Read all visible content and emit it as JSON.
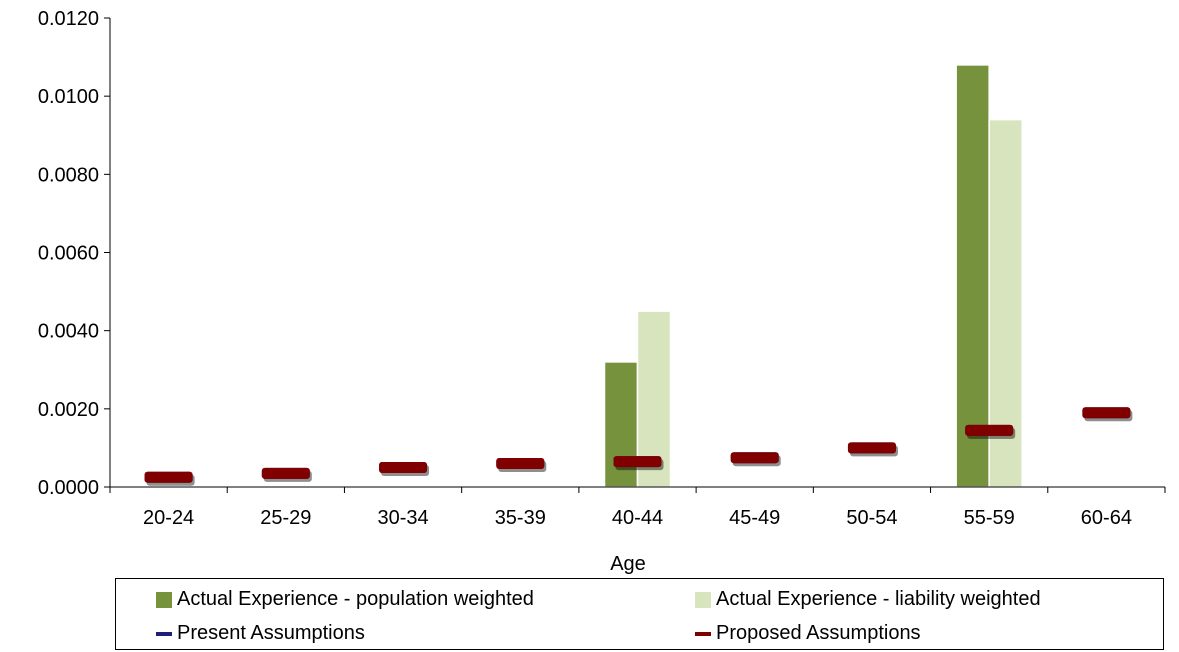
{
  "chart_data": {
    "type": "bar",
    "xlabel": "Age",
    "ylabel": "",
    "ylim": [
      0,
      0.012
    ],
    "yticks": [
      "0.0000",
      "0.0020",
      "0.0040",
      "0.0060",
      "0.0080",
      "0.0100",
      "0.0120"
    ],
    "categories": [
      "20-24",
      "25-29",
      "30-34",
      "35-39",
      "40-44",
      "45-49",
      "50-54",
      "55-59",
      "60-64"
    ],
    "series": [
      {
        "name": "Actual Experience - population weighted",
        "kind": "bar",
        "color": "#76923C",
        "values": [
          0,
          0,
          0,
          0,
          0.0032,
          0,
          0,
          0.0108,
          0
        ]
      },
      {
        "name": "Actual Experience - liability weighted",
        "kind": "bar",
        "color": "#D7E4BD",
        "values": [
          0,
          0,
          0,
          0,
          0.0045,
          0,
          0,
          0.0094,
          0
        ]
      },
      {
        "name": "Present Assumptions",
        "kind": "marker",
        "color": "#1F1F7A",
        "values": [
          0.00025,
          0.00035,
          0.0005,
          0.0006,
          0.00065,
          0.00075,
          0.001,
          0.00145,
          0.0019
        ]
      },
      {
        "name": "Proposed Assumptions",
        "kind": "marker",
        "color": "#800000",
        "values": [
          0.00025,
          0.00035,
          0.0005,
          0.0006,
          0.00065,
          0.00075,
          0.001,
          0.00145,
          0.0019
        ]
      }
    ],
    "legend_position": "bottom",
    "grid": false
  }
}
